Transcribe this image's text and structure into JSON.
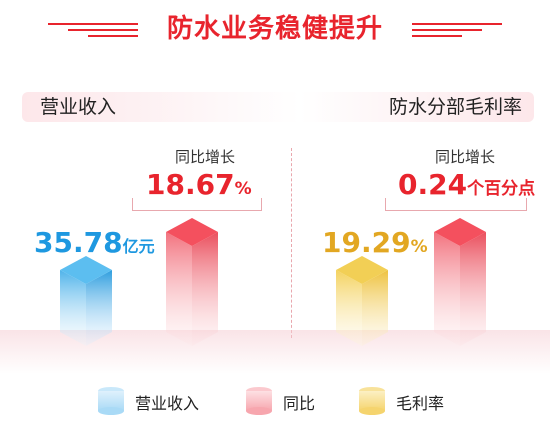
{
  "title": "防水业务稳健提升",
  "panels": {
    "left_label": "营业收入",
    "right_label": "防水分部毛利率"
  },
  "left": {
    "growth_caption": "同比增长",
    "growth_value": "18.67",
    "growth_unit": "%",
    "revenue_value": "35.78",
    "revenue_unit": "亿元"
  },
  "right": {
    "growth_caption": "同比增长",
    "growth_value": "0.24",
    "growth_unit": "个百分点",
    "margin_value": "19.29",
    "margin_unit": "%"
  },
  "legend": [
    {
      "label": "营业收入",
      "color": "#4fb3ea"
    },
    {
      "label": "同比",
      "color": "#f2727e"
    },
    {
      "label": "毛利率",
      "color": "#f4d25f"
    }
  ],
  "colors": {
    "brand_red": "#e8242d",
    "revenue_blue": "#1e98e0",
    "margin_yellow": "#e2a722"
  },
  "chart_data": [
    {
      "type": "bar",
      "categories": [
        "营业收入",
        "同比"
      ],
      "values": [
        35.78,
        18.67
      ],
      "units": [
        "亿元",
        "%"
      ]
    },
    {
      "type": "bar",
      "categories": [
        "毛利率",
        "同比"
      ],
      "values": [
        19.29,
        0.24
      ],
      "units": [
        "%",
        "个百分点"
      ]
    }
  ]
}
